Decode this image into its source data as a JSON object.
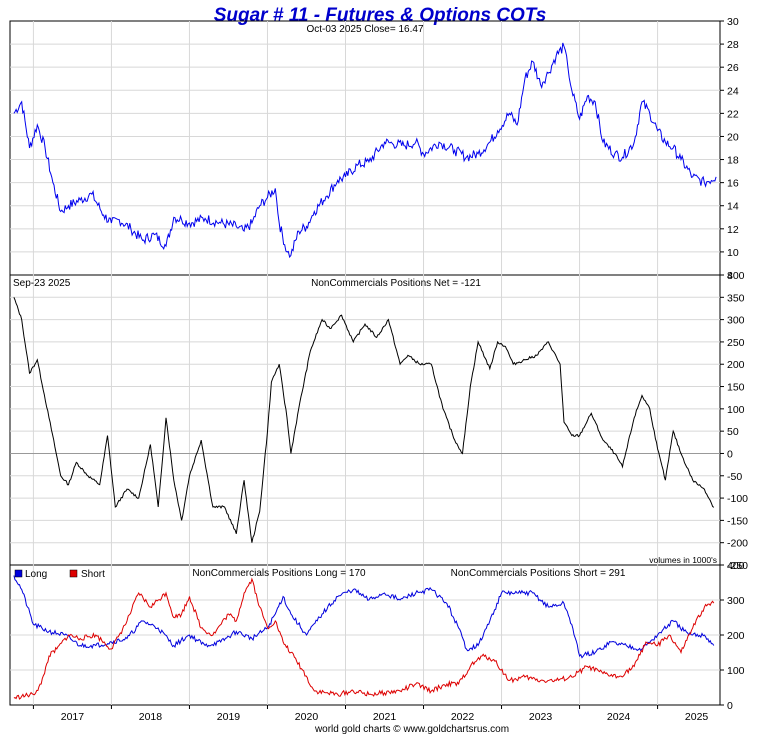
{
  "title": "Sugar # 11 - Futures & Options COTs",
  "footer": "world gold charts © www.goldchartsrus.com",
  "colors": {
    "price": "#0000ee",
    "net": "#000000",
    "long": "#0000dd",
    "short": "#dd0000",
    "title": "#0000cc"
  },
  "chart_data": [
    {
      "type": "line",
      "panel": "price",
      "label": "Oct-03  2025    Close= 16.47",
      "ylim": [
        8,
        30
      ],
      "yticks": [
        8,
        10,
        12,
        14,
        16,
        18,
        20,
        22,
        24,
        26,
        28,
        30
      ],
      "x": [
        2016.75,
        2016.85,
        2016.95,
        2017.05,
        2017.15,
        2017.25,
        2017.35,
        2017.45,
        2017.6,
        2017.75,
        2017.9,
        2018.0,
        2018.1,
        2018.25,
        2018.4,
        2018.55,
        2018.7,
        2018.8,
        2018.9,
        2019.0,
        2019.2,
        2019.4,
        2019.6,
        2019.7,
        2019.8,
        2019.9,
        2020.0,
        2020.1,
        2020.15,
        2020.25,
        2020.3,
        2020.4,
        2020.5,
        2020.6,
        2020.75,
        2020.9,
        2021.0,
        2021.15,
        2021.3,
        2021.5,
        2021.6,
        2021.75,
        2021.9,
        2022.0,
        2022.2,
        2022.4,
        2022.55,
        2022.7,
        2022.85,
        2022.95,
        2023.1,
        2023.2,
        2023.3,
        2023.4,
        2023.5,
        2023.6,
        2023.7,
        2023.8,
        2023.85,
        2023.9,
        2024.0,
        2024.1,
        2024.2,
        2024.3,
        2024.45,
        2024.55,
        2024.7,
        2024.8,
        2024.9,
        2025.0,
        2025.1,
        2025.2,
        2025.3,
        2025.45,
        2025.6,
        2025.75
      ],
      "values": [
        22,
        23,
        19,
        21,
        19,
        16,
        13.5,
        14,
        14.5,
        15,
        13.2,
        12.5,
        12.8,
        12,
        11,
        11.5,
        10.5,
        13,
        12.8,
        12.5,
        12.9,
        12.5,
        12.2,
        11.8,
        12.5,
        14,
        14.7,
        15.5,
        12.5,
        10,
        9.7,
        11.8,
        12.2,
        13.5,
        14.8,
        16.2,
        16.5,
        17.5,
        17.8,
        19.5,
        19.4,
        19.2,
        19.5,
        18.5,
        19.5,
        18.8,
        18.2,
        18.5,
        19.5,
        20.5,
        22,
        21,
        25,
        26.5,
        24.5,
        25.5,
        27,
        27.8,
        26,
        24,
        21.5,
        23.5,
        23,
        19.5,
        18.5,
        18.2,
        19.5,
        23,
        22,
        20.5,
        19.5,
        19,
        18,
        16.5,
        16,
        16.5
      ]
    },
    {
      "type": "line",
      "panel": "net",
      "label_left": "Sep-23  2025",
      "label": "NonCommercials Positions Net = -121",
      "note": "volumes in 1000's",
      "ylim": [
        -250,
        400
      ],
      "yticks": [
        -250,
        -200,
        -150,
        -100,
        -50,
        0,
        50,
        100,
        150,
        200,
        250,
        300,
        350,
        400
      ],
      "x": [
        2016.75,
        2016.85,
        2016.95,
        2017.05,
        2017.2,
        2017.35,
        2017.45,
        2017.55,
        2017.7,
        2017.85,
        2017.95,
        2018.05,
        2018.2,
        2018.35,
        2018.5,
        2018.6,
        2018.7,
        2018.8,
        2018.9,
        2019.0,
        2019.15,
        2019.3,
        2019.45,
        2019.6,
        2019.7,
        2019.8,
        2019.9,
        2020.0,
        2020.05,
        2020.15,
        2020.25,
        2020.3,
        2020.4,
        2020.55,
        2020.7,
        2020.8,
        2020.95,
        2021.1,
        2021.25,
        2021.4,
        2021.55,
        2021.7,
        2021.8,
        2021.95,
        2022.1,
        2022.25,
        2022.4,
        2022.5,
        2022.6,
        2022.7,
        2022.85,
        2022.95,
        2023.05,
        2023.15,
        2023.3,
        2023.45,
        2023.6,
        2023.75,
        2023.8,
        2023.9,
        2024.0,
        2024.15,
        2024.3,
        2024.45,
        2024.55,
        2024.7,
        2024.8,
        2024.9,
        2025.0,
        2025.1,
        2025.2,
        2025.3,
        2025.45,
        2025.6,
        2025.72
      ],
      "values": [
        350,
        300,
        180,
        210,
        80,
        -50,
        -70,
        -20,
        -50,
        -70,
        40,
        -120,
        -80,
        -100,
        20,
        -120,
        80,
        -60,
        -150,
        -50,
        30,
        -120,
        -120,
        -180,
        -60,
        -200,
        -130,
        50,
        160,
        200,
        80,
        0,
        100,
        230,
        300,
        280,
        310,
        250,
        290,
        260,
        300,
        200,
        220,
        200,
        200,
        100,
        30,
        0,
        150,
        250,
        190,
        250,
        240,
        200,
        210,
        220,
        250,
        200,
        70,
        40,
        40,
        90,
        30,
        0,
        -30,
        80,
        130,
        100,
        10,
        -60,
        50,
        0,
        -60,
        -80,
        -121
      ]
    },
    {
      "type": "line",
      "panel": "positions",
      "legend": [
        "Long",
        "Short"
      ],
      "label_long": "NonCommercials Positions Long = 170",
      "label_short": "NonCommercials Positions Short = 291",
      "ylim": [
        0,
        400
      ],
      "yticks": [
        0,
        100,
        200,
        300,
        400
      ],
      "xticks": [
        "2017",
        "2018",
        "2019",
        "2020",
        "2021",
        "2022",
        "2023",
        "2024",
        "2025"
      ],
      "xlim": [
        2016.7,
        2025.8
      ],
      "series": [
        {
          "name": "Long",
          "x": [
            2016.75,
            2016.85,
            2017.0,
            2017.2,
            2017.4,
            2017.6,
            2017.8,
            2018.0,
            2018.2,
            2018.4,
            2018.6,
            2018.8,
            2019.0,
            2019.2,
            2019.4,
            2019.6,
            2019.8,
            2020.0,
            2020.1,
            2020.2,
            2020.3,
            2020.5,
            2020.7,
            2020.9,
            2021.1,
            2021.3,
            2021.5,
            2021.7,
            2021.9,
            2022.1,
            2022.3,
            2022.45,
            2022.55,
            2022.7,
            2022.85,
            2023.0,
            2023.2,
            2023.4,
            2023.6,
            2023.8,
            2023.9,
            2024.0,
            2024.2,
            2024.4,
            2024.6,
            2024.8,
            2025.0,
            2025.2,
            2025.4,
            2025.6,
            2025.72
          ],
          "values": [
            370,
            330,
            230,
            210,
            200,
            170,
            170,
            180,
            190,
            240,
            220,
            170,
            200,
            170,
            180,
            210,
            190,
            220,
            260,
            310,
            260,
            200,
            260,
            310,
            330,
            300,
            320,
            300,
            320,
            330,
            290,
            220,
            160,
            170,
            240,
            320,
            320,
            320,
            280,
            290,
            230,
            140,
            150,
            180,
            170,
            160,
            200,
            240,
            200,
            200,
            170
          ]
        },
        {
          "name": "Short",
          "x": [
            2016.75,
            2016.85,
            2017.0,
            2017.1,
            2017.2,
            2017.3,
            2017.45,
            2017.6,
            2017.8,
            2018.0,
            2018.1,
            2018.2,
            2018.35,
            2018.5,
            2018.6,
            2018.7,
            2018.8,
            2018.9,
            2019.0,
            2019.15,
            2019.3,
            2019.5,
            2019.6,
            2019.7,
            2019.8,
            2019.9,
            2020.0,
            2020.1,
            2020.2,
            2020.3,
            2020.45,
            2020.6,
            2020.75,
            2020.9,
            2021.1,
            2021.3,
            2021.5,
            2021.7,
            2021.9,
            2022.1,
            2022.3,
            2022.45,
            2022.6,
            2022.75,
            2022.9,
            2023.1,
            2023.3,
            2023.5,
            2023.7,
            2023.9,
            2024.1,
            2024.3,
            2024.5,
            2024.7,
            2024.85,
            2025.0,
            2025.15,
            2025.3,
            2025.45,
            2025.6,
            2025.72
          ],
          "values": [
            20,
            25,
            30,
            60,
            140,
            160,
            200,
            190,
            200,
            160,
            200,
            240,
            320,
            280,
            300,
            320,
            250,
            260,
            310,
            220,
            200,
            260,
            240,
            320,
            360,
            280,
            220,
            240,
            180,
            150,
            100,
            40,
            35,
            30,
            40,
            30,
            35,
            40,
            60,
            40,
            60,
            60,
            110,
            140,
            130,
            70,
            80,
            70,
            70,
            80,
            110,
            90,
            80,
            110,
            180,
            170,
            200,
            150,
            220,
            280,
            291
          ]
        }
      ]
    }
  ]
}
